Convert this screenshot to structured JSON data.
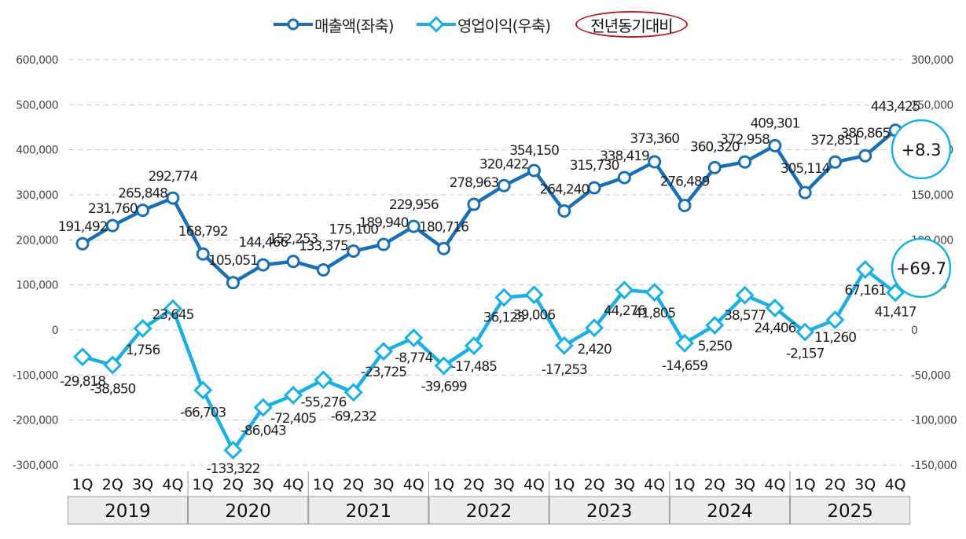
{
  "legend": {
    "sales": "매출액(좌축)",
    "op_income": "영업이익(우축)",
    "yoy": "전년동기대비"
  },
  "callouts": {
    "sales_yoy": "+8.3",
    "op_income_yoy": "+69.7"
  },
  "colors": {
    "sales": "#1a6fb5",
    "op_income": "#1ab0e6",
    "yoy_border": "#b51f24",
    "grid": "#c8c8c8",
    "year_box": "#ececec"
  },
  "chart_data": {
    "type": "line",
    "title": "",
    "grid": true,
    "legend_position": "top-center",
    "years": [
      "2019",
      "2020",
      "2021",
      "2022",
      "2023",
      "2024",
      "2025"
    ],
    "quarters": [
      "1Q",
      "2Q",
      "3Q",
      "4Q"
    ],
    "x": [
      "2019 1Q",
      "2019 2Q",
      "2019 3Q",
      "2019 4Q",
      "2020 1Q",
      "2020 2Q",
      "2020 3Q",
      "2020 4Q",
      "2021 1Q",
      "2021 2Q",
      "2021 3Q",
      "2021 4Q",
      "2022 1Q",
      "2022 2Q",
      "2022 3Q",
      "2022 4Q",
      "2023 1Q",
      "2023 2Q",
      "2023 3Q",
      "2023 4Q",
      "2024 1Q",
      "2024 2Q",
      "2024 3Q",
      "2024 4Q",
      "2025 1Q",
      "2025 2Q",
      "2025 3Q",
      "2025 4Q"
    ],
    "y_left": {
      "min": -300000,
      "max": 600000,
      "ticks": [
        "600,000",
        "500,000",
        "400,000",
        "300,000",
        "200,000",
        "100,000",
        "0",
        "-100,000",
        "-200,000",
        "-300,000"
      ]
    },
    "y_right": {
      "min": -150000,
      "max": 300000,
      "ticks": [
        "300,000",
        "250,000",
        "200,000",
        "150,000",
        "100,000",
        "50,000",
        "0",
        "-50,000",
        "-100,000",
        "-150,000"
      ]
    },
    "series": [
      {
        "name": "매출액(좌축)",
        "axis": "left",
        "values": [
          191492,
          231760,
          265848,
          292774,
          168792,
          105051,
          144466,
          152253,
          133375,
          175100,
          189940,
          229956,
          180716,
          278963,
          320422,
          354150,
          264240,
          315730,
          338419,
          373360,
          276489,
          360320,
          372958,
          409301,
          305114,
          372851,
          386865,
          443425
        ],
        "labels": [
          "191,492",
          "231,760",
          "265,848",
          "292,774",
          "168,792",
          "105,051",
          "144,466",
          "152,253",
          "133,375",
          "175,100",
          "189,940",
          "229,956",
          "180,716",
          "278,963",
          "320,422",
          "354,150",
          "264,240",
          "315,730",
          "338,419",
          "373,360",
          "276,489",
          "360,320",
          "372,958",
          "409,301",
          "305,114",
          "372,851",
          "386,865",
          "443,425"
        ]
      },
      {
        "name": "영업이익(우축)",
        "axis": "right",
        "values": [
          -29818,
          -38850,
          1756,
          23645,
          -66703,
          -133322,
          -86043,
          -72405,
          -55276,
          -69232,
          -23725,
          -8774,
          -39699,
          -17485,
          36125,
          39006,
          -17253,
          2420,
          44276,
          41805,
          -14659,
          5250,
          38577,
          24406,
          -2157,
          11260,
          67161,
          41417
        ],
        "labels": [
          "-29,818",
          "-38,850",
          "1,756",
          "23,645",
          "-66,703",
          "-133,322",
          "-86,043",
          "-72,405",
          "-55,276",
          "-69,232",
          "-23,725",
          "-8,774",
          "-39,699",
          "-17,485",
          "36,125",
          "39,006",
          "-17,253",
          "2,420",
          "44,276",
          "41,805",
          "-14,659",
          "5,250",
          "38,577",
          "24,406",
          "-2,157",
          "11,260",
          "67,161",
          "41,417"
        ]
      }
    ]
  }
}
